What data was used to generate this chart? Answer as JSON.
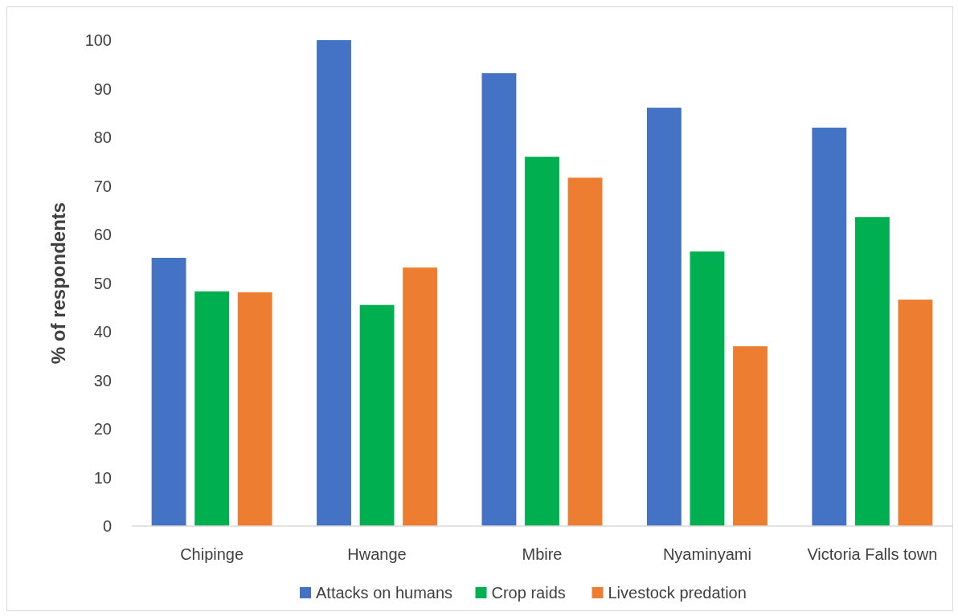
{
  "chart_data": {
    "type": "bar",
    "ylabel": "% of respondents",
    "categories": [
      "Chipinge",
      "Hwange",
      "Mbire",
      "Nyaminyami",
      "Victoria Falls town"
    ],
    "series": [
      {
        "name": "Attacks on humans",
        "color": "#4472c4",
        "values": [
          55.2,
          100,
          93.2,
          86.1,
          82.0
        ]
      },
      {
        "name": "Crop raids",
        "color": "#00b050",
        "values": [
          48.3,
          45.5,
          76.0,
          56.5,
          63.6
        ]
      },
      {
        "name": "Livestock predation",
        "color": "#ed7d31",
        "values": [
          48.1,
          53.2,
          71.7,
          37.0,
          46.6
        ]
      }
    ],
    "ylim": [
      0,
      100
    ],
    "yticks": [
      0,
      10,
      20,
      30,
      40,
      50,
      60,
      70,
      80,
      90,
      100
    ],
    "grid": false,
    "legend": "bottom"
  }
}
